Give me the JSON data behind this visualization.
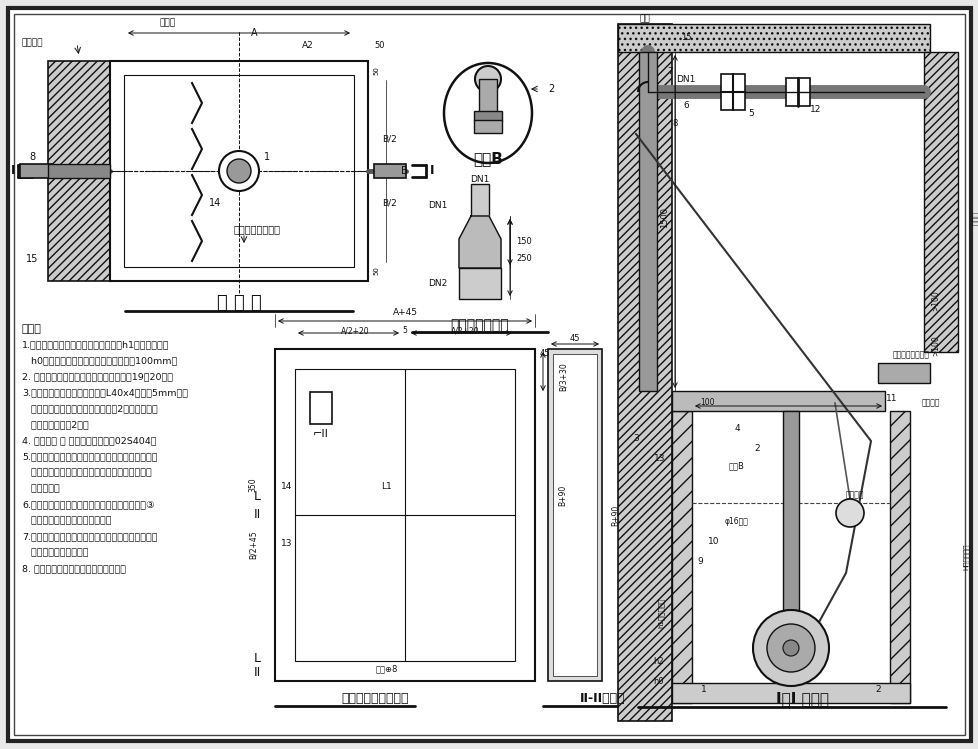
{
  "bg_color": "#e8e8e8",
  "border_color": "#111111",
  "line_color": "#111111",
  "title_plan": "平 面 图",
  "title_node": "节点B",
  "title_disk": "盘插异径管大样",
  "title_cover": "集水坑钢盖板平面图",
  "title_II": "II-II剖面图",
  "title_I": "I－I 剖面图",
  "notes_title": "说明：",
  "notes": [
    "1.本图潜水排污泵采用液位自动控制，h1为开泵水位，",
    "   h0为停泵水位，报警水位高出开泵水位100mm。",
    "2. 设备材料表、安装尺寸表详见本图集第19、20页。",
    "3.污水池（集水坑）钢盖板采用L40x4角钢和5mm厚花",
    "   纹钢板制作，内外表面先刷防锈漆2道，再刷银粉",
    "   漆或灰色调和漆2道。",
    "4. 防水套管 ⑮ 制作安装详见国标02S404。",
    "5.潜水排污泵控制柜安装位置由单项工程设计考虑，",
    "   其型号规格可由泵厂配套供应，池外电线电缆应",
    "   穿管敷设。",
    "6.若污水池（集水坑）距墙较远，出水橡胶软管③",
    "   可敷设在地面垫层的钢套管内。",
    "7.污水池（集水坑）进水管数量、位置、管径及标高",
    "   由单项工程设计确定。",
    "8. 本图适用于较清洁污（废）水提升。"
  ]
}
